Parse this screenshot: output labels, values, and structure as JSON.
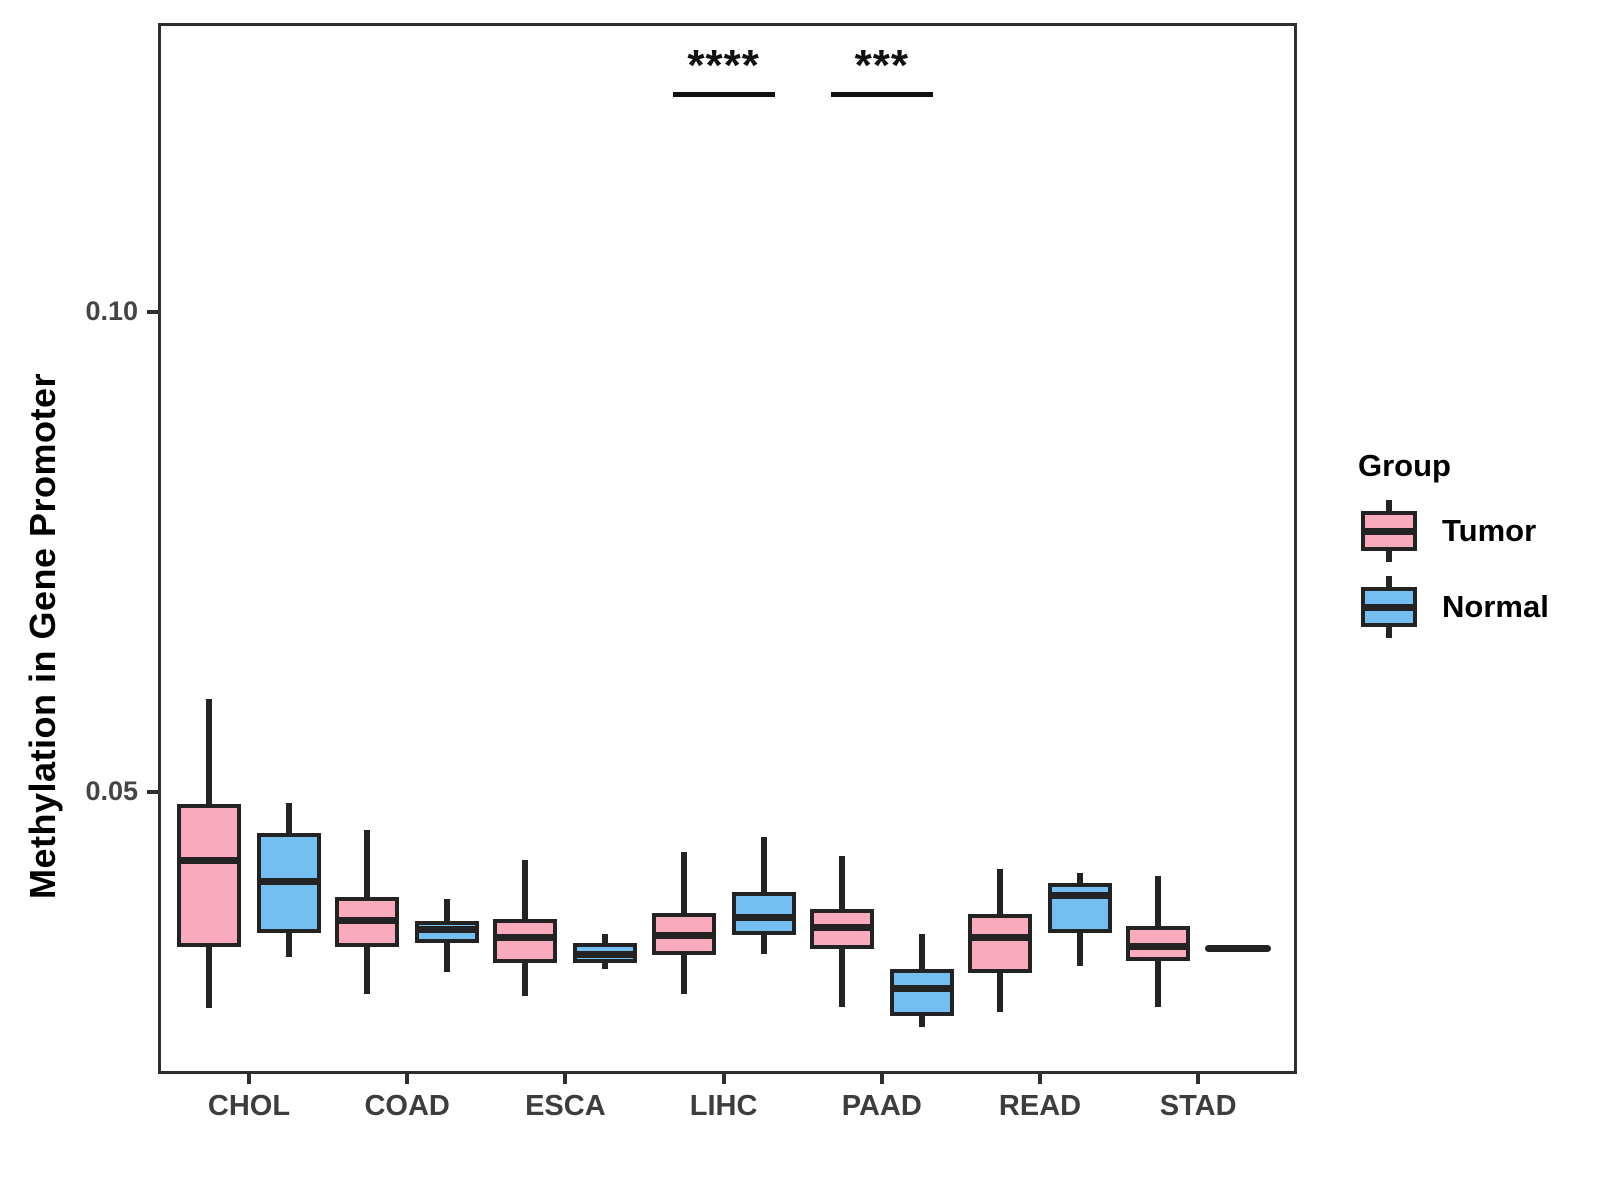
{
  "chart_data": {
    "type": "grouped_boxplot",
    "title": "",
    "ylabel": "Methylation in Gene Promoter",
    "xlabel": "",
    "categories": [
      "CHOL",
      "COAD",
      "ESCA",
      "LIHC",
      "PAAD",
      "READ",
      "STAD"
    ],
    "y_axis": {
      "ticks": [
        {
          "label": "0.05",
          "value": 0.05
        },
        {
          "label": "0.10",
          "value": 0.1
        }
      ],
      "range": [
        0.021,
        0.13
      ],
      "grid": false
    },
    "groups": [
      {
        "name": "Tumor",
        "color": "#FAAABD"
      },
      {
        "name": "Normal",
        "color": "#74BEF2"
      }
    ],
    "series": [
      {
        "name": "Tumor",
        "boxes": [
          {
            "category": "CHOL",
            "whisker_low": 0.0275,
            "q1": 0.0339,
            "median": 0.0429,
            "q3": 0.0488,
            "whisker_high": 0.0597
          },
          {
            "category": "COAD",
            "whisker_low": 0.029,
            "q1": 0.0339,
            "median": 0.0366,
            "q3": 0.0391,
            "whisker_high": 0.046
          },
          {
            "category": "ESCA",
            "whisker_low": 0.0288,
            "q1": 0.0322,
            "median": 0.0348,
            "q3": 0.0368,
            "whisker_high": 0.0429
          },
          {
            "category": "LIHC",
            "whisker_low": 0.029,
            "q1": 0.033,
            "median": 0.0351,
            "q3": 0.0374,
            "whisker_high": 0.0437
          },
          {
            "category": "PAAD",
            "whisker_low": 0.0276,
            "q1": 0.0336,
            "median": 0.0359,
            "q3": 0.0378,
            "whisker_high": 0.0433
          },
          {
            "category": "READ",
            "whisker_low": 0.0271,
            "q1": 0.0311,
            "median": 0.0348,
            "q3": 0.0373,
            "whisker_high": 0.042
          },
          {
            "category": "STAD",
            "whisker_low": 0.0276,
            "q1": 0.0324,
            "median": 0.0339,
            "q3": 0.036,
            "whisker_high": 0.0412
          }
        ]
      },
      {
        "name": "Normal",
        "boxes": [
          {
            "category": "CHOL",
            "whisker_low": 0.0328,
            "q1": 0.0353,
            "median": 0.0407,
            "q3": 0.0457,
            "whisker_high": 0.0489
          },
          {
            "category": "COAD",
            "whisker_low": 0.0313,
            "q1": 0.0343,
            "median": 0.0357,
            "q3": 0.0366,
            "whisker_high": 0.0389
          },
          {
            "category": "ESCA",
            "whisker_low": 0.0316,
            "q1": 0.0322,
            "median": 0.0331,
            "q3": 0.0343,
            "whisker_high": 0.0352
          },
          {
            "category": "LIHC",
            "whisker_low": 0.0331,
            "q1": 0.0351,
            "median": 0.0369,
            "q3": 0.0396,
            "whisker_high": 0.0453
          },
          {
            "category": "PAAD",
            "whisker_low": 0.0255,
            "q1": 0.0267,
            "median": 0.0295,
            "q3": 0.0316,
            "whisker_high": 0.0352
          },
          {
            "category": "READ",
            "whisker_low": 0.0319,
            "q1": 0.0353,
            "median": 0.0392,
            "q3": 0.0405,
            "whisker_high": 0.0416
          },
          {
            "category": "STAD",
            "whisker_low": null,
            "q1": null,
            "median": 0.0337,
            "q3": null,
            "whisker_high": null
          }
        ]
      }
    ],
    "annotations": [
      {
        "category": "LIHC",
        "label": "****"
      },
      {
        "category": "PAAD",
        "label": "***"
      }
    ],
    "legend": {
      "title": "Group",
      "entries": [
        "Tumor",
        "Normal"
      ],
      "position": "right"
    }
  }
}
